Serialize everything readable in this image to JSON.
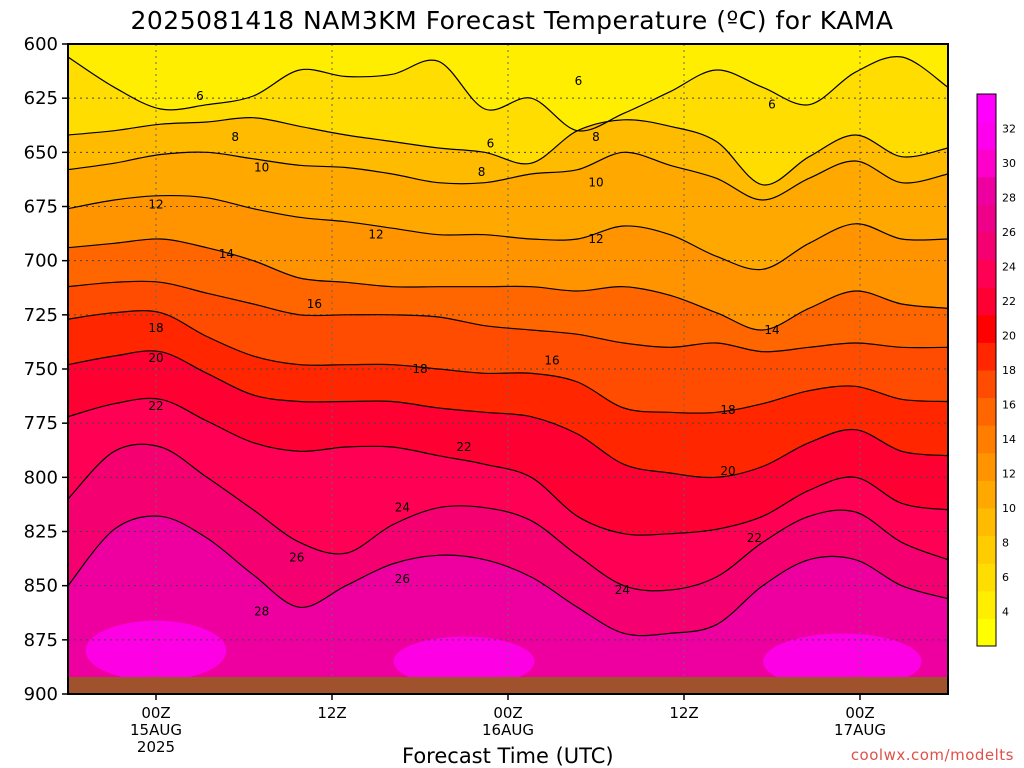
{
  "chart_data": {
    "type": "heatmap",
    "title": "2025081418 NAM3KM Forecast Temperature (ºC) for KAMA",
    "xlabel": "Forecast Time (UTC)",
    "credit": "coolwx.com/modelts",
    "y_axis": {
      "ticks": [
        "600",
        "625",
        "650",
        "675",
        "700",
        "725",
        "750",
        "775",
        "800",
        "825",
        "850",
        "875",
        "900"
      ],
      "range": [
        600,
        900
      ],
      "inverted": true
    },
    "x_axis": {
      "ticks": [
        {
          "time": "00Z",
          "date": "15AUG",
          "year": "2025"
        },
        {
          "time": "12Z",
          "date": "",
          "year": ""
        },
        {
          "time": "00Z",
          "date": "16AUG",
          "year": ""
        },
        {
          "time": "12Z",
          "date": "",
          "year": ""
        },
        {
          "time": "00Z",
          "date": "17AUG",
          "year": ""
        }
      ]
    },
    "grid": true,
    "colorbar": {
      "ticks": [
        "4",
        "6",
        "8",
        "10",
        "12",
        "14",
        "16",
        "18",
        "20",
        "22",
        "24",
        "26",
        "28",
        "30",
        "32"
      ],
      "colors": [
        "#ffff00",
        "#ffee00",
        "#ffdd00",
        "#ffcc00",
        "#ffbb00",
        "#ffa800",
        "#ff9400",
        "#ff7e00",
        "#ff6600",
        "#ff4c00",
        "#ff2600",
        "#ff0000",
        "#ff0033",
        "#ff0055",
        "#f50070",
        "#ee0088",
        "#ee00a0",
        "#ff00cc",
        "#ff00ee",
        "#ff00ff"
      ]
    },
    "contours": [
      {
        "value": 6,
        "label": "6",
        "pressure": [
          606,
          620,
          630,
          628,
          624,
          612,
          615,
          614,
          608,
          630,
          625,
          640,
          632,
          622,
          612,
          620,
          628,
          613,
          606,
          620
        ]
      },
      {
        "value": 8,
        "label": "8",
        "pressure": [
          642,
          640,
          637,
          636,
          634,
          638,
          642,
          645,
          648,
          650,
          655,
          640,
          635,
          638,
          645,
          665,
          652,
          642,
          652,
          648
        ]
      },
      {
        "value": 10,
        "label": "10",
        "pressure": [
          658,
          655,
          651,
          650,
          653,
          656,
          657,
          660,
          664,
          664,
          660,
          658,
          650,
          656,
          662,
          672,
          662,
          654,
          664,
          660
        ]
      },
      {
        "value": 12,
        "label": "12",
        "pressure": [
          676,
          672,
          670,
          671,
          676,
          680,
          682,
          685,
          688,
          688,
          690,
          690,
          684,
          688,
          698,
          704,
          692,
          683,
          690,
          690
        ]
      },
      {
        "value": 14,
        "label": "14",
        "pressure": [
          694,
          692,
          690,
          694,
          700,
          708,
          710,
          712,
          712,
          712,
          712,
          714,
          712,
          716,
          724,
          732,
          722,
          714,
          720,
          722
        ]
      },
      {
        "value": 16,
        "label": "16",
        "pressure": [
          712,
          710,
          710,
          715,
          720,
          725,
          725,
          725,
          726,
          730,
          732,
          734,
          738,
          740,
          738,
          742,
          740,
          738,
          740,
          740
        ]
      },
      {
        "value": 18,
        "label": "18",
        "pressure": [
          727,
          724,
          724,
          735,
          744,
          748,
          748,
          748,
          750,
          752,
          752,
          756,
          768,
          770,
          770,
          766,
          760,
          758,
          764,
          765
        ]
      },
      {
        "value": 20,
        "label": "20",
        "pressure": [
          748,
          744,
          742,
          752,
          762,
          765,
          765,
          765,
          768,
          770,
          772,
          780,
          794,
          798,
          800,
          795,
          784,
          778,
          788,
          790
        ]
      },
      {
        "value": 22,
        "label": "22",
        "pressure": [
          772,
          766,
          764,
          774,
          784,
          788,
          786,
          786,
          790,
          794,
          800,
          818,
          826,
          826,
          824,
          818,
          806,
          800,
          812,
          815
        ]
      },
      {
        "value": 24,
        "label": "24",
        "pressure": [
          810,
          788,
          786,
          800,
          815,
          830,
          835,
          822,
          814,
          814,
          820,
          836,
          850,
          852,
          846,
          830,
          818,
          816,
          830,
          838
        ]
      },
      {
        "value": 26,
        "label": "26",
        "pressure": [
          850,
          824,
          818,
          828,
          845,
          860,
          850,
          840,
          836,
          838,
          846,
          860,
          872,
          872,
          868,
          850,
          838,
          838,
          850,
          856
        ]
      }
    ],
    "contour_labels": [
      {
        "value": "6",
        "x_frac": 0.15,
        "pressure": 624
      },
      {
        "value": "8",
        "x_frac": 0.19,
        "pressure": 643
      },
      {
        "value": "10",
        "x_frac": 0.22,
        "pressure": 657
      },
      {
        "value": "12",
        "x_frac": 0.1,
        "pressure": 674
      },
      {
        "value": "14",
        "x_frac": 0.18,
        "pressure": 697
      },
      {
        "value": "16",
        "x_frac": 0.28,
        "pressure": 720
      },
      {
        "value": "18",
        "x_frac": 0.1,
        "pressure": 731
      },
      {
        "value": "20",
        "x_frac": 0.1,
        "pressure": 745
      },
      {
        "value": "22",
        "x_frac": 0.1,
        "pressure": 767
      },
      {
        "value": "12",
        "x_frac": 0.35,
        "pressure": 688
      },
      {
        "value": "18",
        "x_frac": 0.4,
        "pressure": 750
      },
      {
        "value": "22",
        "x_frac": 0.45,
        "pressure": 786
      },
      {
        "value": "24",
        "x_frac": 0.38,
        "pressure": 814
      },
      {
        "value": "26",
        "x_frac": 0.26,
        "pressure": 837
      },
      {
        "value": "26",
        "x_frac": 0.38,
        "pressure": 847
      },
      {
        "value": "28",
        "x_frac": 0.22,
        "pressure": 862
      },
      {
        "value": "6",
        "x_frac": 0.48,
        "pressure": 646
      },
      {
        "value": "8",
        "x_frac": 0.47,
        "pressure": 659
      },
      {
        "value": "6",
        "x_frac": 0.58,
        "pressure": 617
      },
      {
        "value": "8",
        "x_frac": 0.6,
        "pressure": 643
      },
      {
        "value": "10",
        "x_frac": 0.6,
        "pressure": 664
      },
      {
        "value": "12",
        "x_frac": 0.6,
        "pressure": 690
      },
      {
        "value": "16",
        "x_frac": 0.55,
        "pressure": 746
      },
      {
        "value": "24",
        "x_frac": 0.63,
        "pressure": 852
      },
      {
        "value": "18",
        "x_frac": 0.75,
        "pressure": 769
      },
      {
        "value": "20",
        "x_frac": 0.75,
        "pressure": 797
      },
      {
        "value": "22",
        "x_frac": 0.78,
        "pressure": 828
      },
      {
        "value": "14",
        "x_frac": 0.8,
        "pressure": 732
      },
      {
        "value": "6",
        "x_frac": 0.8,
        "pressure": 628
      }
    ]
  }
}
